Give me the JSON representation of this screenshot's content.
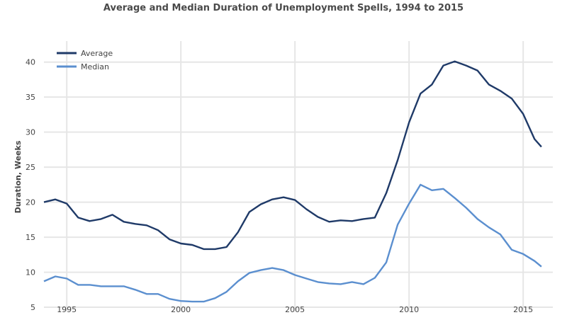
{
  "chart_data": {
    "type": "line",
    "title": "Average and Median Duration of Unemployment Spells, 1994 to 2015",
    "xlabel": "",
    "ylabel": "Duration, Weeks",
    "xlim": [
      1994,
      2016.3
    ],
    "ylim": [
      4.4,
      43
    ],
    "grid": true,
    "legend_position": "top-left",
    "x_ticks": [
      "1995",
      "2000",
      "2005",
      "2010",
      "2015"
    ],
    "y_ticks": [
      "5",
      "10",
      "15",
      "20",
      "25",
      "30",
      "35",
      "40"
    ],
    "x": [
      1994.0,
      1994.5,
      1995.0,
      1995.5,
      1996.0,
      1996.5,
      1997.0,
      1997.5,
      1998.0,
      1998.5,
      1999.0,
      1999.5,
      2000.0,
      2000.5,
      2001.0,
      2001.5,
      2002.0,
      2002.5,
      2003.0,
      2003.5,
      2004.0,
      2004.5,
      2005.0,
      2005.5,
      2006.0,
      2006.5,
      2007.0,
      2007.5,
      2008.0,
      2008.5,
      2009.0,
      2009.5,
      2010.0,
      2010.5,
      2011.0,
      2011.5,
      2012.0,
      2012.5,
      2013.0,
      2013.5,
      2014.0,
      2014.5,
      2015.0,
      2015.5,
      2015.8
    ],
    "series": [
      {
        "name": "Average",
        "color": "#1f3a68",
        "values": [
          20.0,
          20.4,
          19.8,
          17.8,
          17.3,
          17.6,
          18.2,
          17.2,
          16.9,
          16.7,
          16.0,
          14.7,
          14.1,
          13.9,
          13.3,
          13.3,
          13.6,
          15.7,
          18.6,
          19.7,
          20.4,
          20.7,
          20.3,
          19.0,
          17.9,
          17.2,
          17.4,
          17.3,
          17.6,
          17.8,
          21.3,
          26.0,
          31.4,
          35.5,
          36.8,
          39.5,
          40.1,
          39.5,
          38.8,
          36.8,
          35.9,
          34.8,
          32.6,
          29.0,
          27.9
        ]
      },
      {
        "name": "Median",
        "color": "#5b8fcf",
        "values": [
          8.7,
          9.4,
          9.1,
          8.2,
          8.2,
          8.0,
          8.0,
          8.0,
          7.5,
          6.9,
          6.9,
          6.2,
          5.9,
          5.8,
          5.8,
          6.3,
          7.2,
          8.7,
          9.9,
          10.3,
          10.6,
          10.3,
          9.6,
          9.1,
          8.6,
          8.4,
          8.3,
          8.6,
          8.3,
          9.2,
          11.4,
          16.8,
          19.8,
          22.5,
          21.7,
          21.9,
          20.6,
          19.2,
          17.6,
          16.4,
          15.4,
          13.2,
          12.6,
          11.6,
          10.8
        ]
      }
    ]
  }
}
